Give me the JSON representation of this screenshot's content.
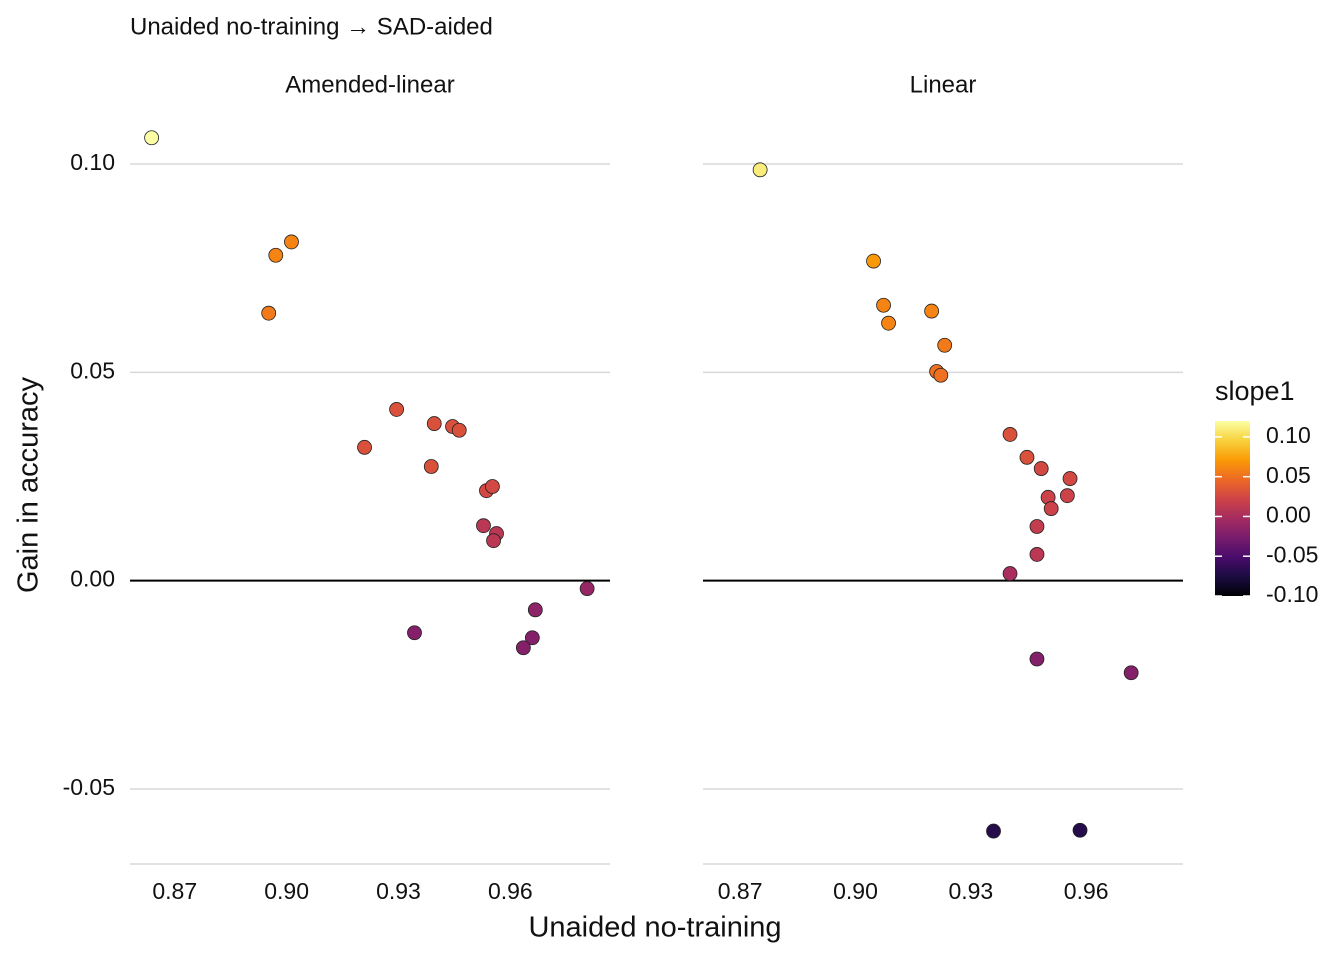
{
  "chart_data": {
    "type": "scatter",
    "title": "Unaided no-training → SAD-aided",
    "x_label": "Unaided no-training",
    "y_label": "Gain in accuracy",
    "xlim": [
      0.858,
      0.987
    ],
    "xticks": [
      {
        "value": 0.87,
        "label": "0.87"
      },
      {
        "value": 0.9,
        "label": "0.90"
      },
      {
        "value": 0.93,
        "label": "0.93"
      },
      {
        "value": 0.96,
        "label": "0.96"
      }
    ],
    "ylim": [
      -0.068,
      0.112
    ],
    "yticks": [
      {
        "value": -0.05,
        "label": "-0.05"
      },
      {
        "value": 0,
        "label": "0.00"
      },
      {
        "value": 0.05,
        "label": "0.05"
      },
      {
        "value": 0.1,
        "label": "0.10"
      }
    ],
    "hline": 0,
    "grid": true,
    "colorbar": {
      "title": "slope1",
      "lim": [
        -0.1,
        0.12
      ],
      "ticks": [
        {
          "value": 0.1,
          "label": "0.10"
        },
        {
          "value": 0.05,
          "label": "0.05"
        },
        {
          "value": 0,
          "label": "0.00"
        },
        {
          "value": -0.05,
          "label": "-0.05"
        },
        {
          "value": -0.1,
          "label": "-0.10"
        }
      ],
      "colors": [
        "#000004",
        "#1b0c41",
        "#4a0c6b",
        "#781c6d",
        "#a52c60",
        "#cf4446",
        "#ed6925",
        "#fb9b06",
        "#f7d13d",
        "#fcffa4"
      ]
    },
    "panels": [
      {
        "title": "Amended-linear",
        "x": [
          0.8638,
          0.8971,
          0.9013,
          0.8952,
          0.9295,
          0.9209,
          0.9396,
          0.9445,
          0.9463,
          0.9388,
          0.9536,
          0.9552,
          0.9528,
          0.9563,
          0.9555,
          0.9343,
          0.9667,
          0.9659,
          0.9635,
          0.9806
        ],
        "y": [
          0.1063,
          0.0781,
          0.0813,
          0.0642,
          0.0411,
          0.032,
          0.0377,
          0.037,
          0.0361,
          0.0274,
          0.0216,
          0.0226,
          0.0132,
          0.0113,
          0.0096,
          -0.0125,
          -0.007,
          -0.0137,
          -0.0161,
          -0.0019
        ],
        "slope1": [
          0.12,
          0.06,
          0.06,
          0.055,
          0.03,
          0.03,
          0.03,
          0.03,
          0.03,
          0.03,
          0.025,
          0.025,
          0.01,
          0.01,
          0.01,
          -0.02,
          -0.015,
          -0.02,
          -0.02,
          -0.01
        ]
      },
      {
        "title": "Linear",
        "x": [
          0.8752,
          0.9047,
          0.9073,
          0.9086,
          0.9198,
          0.9232,
          0.9211,
          0.9222,
          0.9402,
          0.9446,
          0.9483,
          0.9558,
          0.9501,
          0.9551,
          0.9509,
          0.9472,
          0.9472,
          0.9402,
          0.9472,
          0.9717,
          0.9359,
          0.9584
        ],
        "y": [
          0.0986,
          0.0767,
          0.0661,
          0.0618,
          0.0647,
          0.0565,
          0.0502,
          0.0493,
          0.0351,
          0.0296,
          0.0269,
          0.0245,
          0.02,
          0.0204,
          0.0173,
          0.013,
          0.0063,
          0.0017,
          -0.0188,
          -0.0221,
          -0.0601,
          -0.0599
        ],
        "slope1": [
          0.11,
          0.07,
          0.06,
          0.06,
          0.06,
          0.055,
          0.05,
          0.05,
          0.03,
          0.03,
          0.025,
          0.025,
          0.02,
          0.02,
          0.02,
          0.015,
          0.01,
          0.0,
          -0.02,
          -0.02,
          -0.07,
          -0.07
        ]
      }
    ]
  }
}
